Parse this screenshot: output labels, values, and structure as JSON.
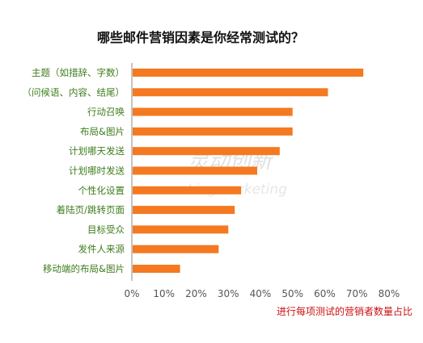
{
  "chart_data": {
    "type": "bar",
    "orientation": "horizontal",
    "title": "哪些邮件营销因素是你经常测试的？",
    "categories": [
      "主题（如措辞、字数）",
      "（问候语、内容、结尾）",
      "行动召唤",
      "布局&图片",
      "计划哪天发送",
      "计划哪时发送",
      "个性化设置",
      "着陆页/跳转页面",
      "目标受众",
      "发件人来源",
      "移动端的布局&图片"
    ],
    "values": [
      72,
      61,
      50,
      50,
      46,
      39,
      34,
      32,
      30,
      27,
      15
    ],
    "value_unit": "%",
    "xlim": [
      0,
      80
    ],
    "x_ticks": [
      "0%",
      "10%",
      "20%",
      "30%",
      "40%",
      "50%",
      "60%",
      "70%",
      "80%"
    ],
    "xlabel": "进行每项测试的营销者数量占比",
    "ylabel": "",
    "grid": false,
    "bar_color": "#f47920",
    "label_color": "#3e7d1c",
    "xlabel_color": "#cc1111"
  },
  "watermark": {
    "text": "灵动创新",
    "sub": "Lingmarketing"
  }
}
